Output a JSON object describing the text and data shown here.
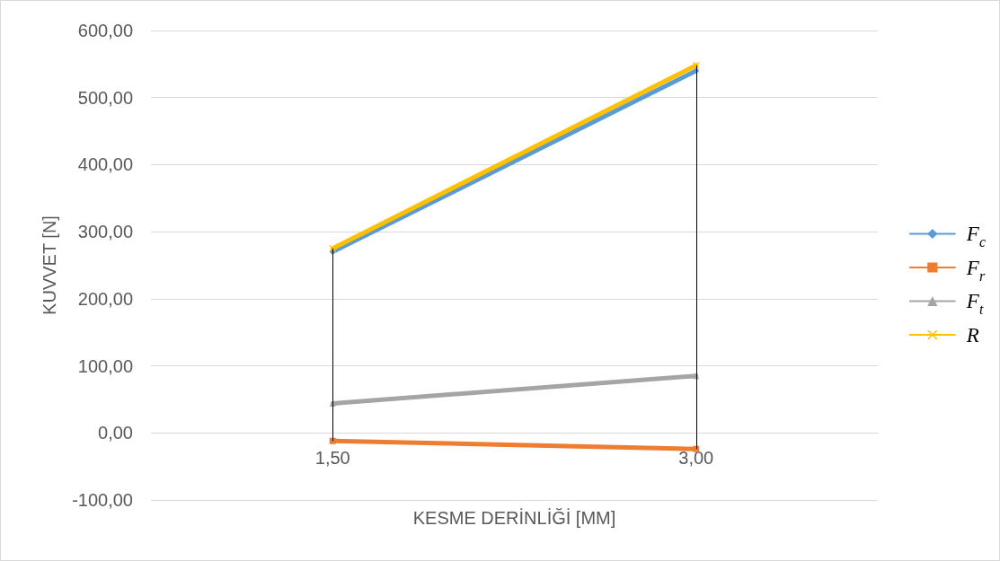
{
  "chart_data": {
    "type": "line",
    "xlabel": "KESME DERİNLİĞİ [MM]",
    "ylabel": "KUVVET [N]",
    "categories": [
      "1,50",
      "3,00"
    ],
    "series": [
      {
        "name": "F$_{c}$",
        "color": "#5b9bd5",
        "marker": "diamond",
        "values": [
          270,
          540
        ]
      },
      {
        "name": "F$_{r}$",
        "color": "#ed7d31",
        "marker": "square",
        "values": [
          -12,
          -24
        ]
      },
      {
        "name": "F$_{t}$",
        "color": "#a5a5a5",
        "marker": "triangle",
        "values": [
          44,
          85
        ]
      },
      {
        "name": "R",
        "color": "#ffc000",
        "marker": "cross",
        "values": [
          275,
          548
        ]
      }
    ],
    "ylim": [
      -100,
      600
    ],
    "yticks": [
      {
        "value": -100,
        "label": "-100,00"
      },
      {
        "value": 0,
        "label": "0,00"
      },
      {
        "value": 100,
        "label": "100,00"
      },
      {
        "value": 200,
        "label": "200,00"
      },
      {
        "value": 300,
        "label": "300,00"
      },
      {
        "value": 400,
        "label": "400,00"
      },
      {
        "value": 500,
        "label": "500,00"
      },
      {
        "value": 600,
        "label": "600,00"
      }
    ],
    "grid": "y",
    "legend": "right",
    "line_style": "solid",
    "ref_lines": [
      {
        "axis": "x",
        "value": "1,50",
        "color": "#000000"
      },
      {
        "axis": "x",
        "value": "3,00",
        "color": "#000000"
      }
    ]
  }
}
